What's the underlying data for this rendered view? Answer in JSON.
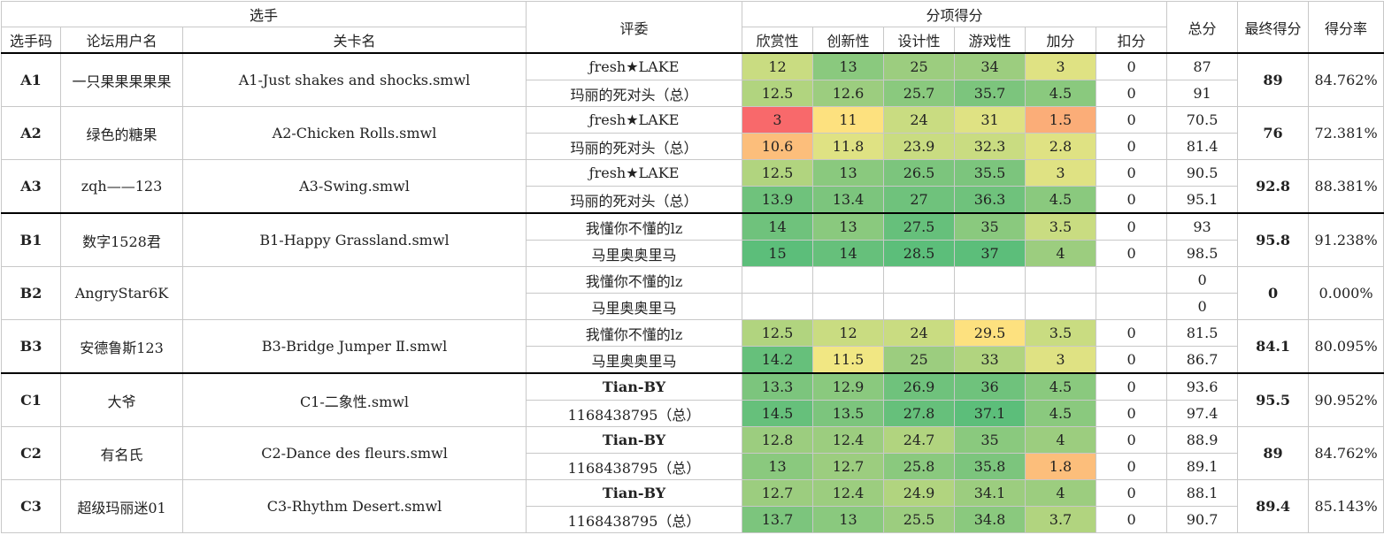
{
  "header": {
    "group_player": "选手",
    "group_judge": "评委",
    "group_scores": "分项得分",
    "col_code": "选手码",
    "col_user": "论坛用户名",
    "col_level": "关卡名",
    "col_appreciation": "欣赏性",
    "col_innovation": "创新性",
    "col_design": "设计性",
    "col_gameplay": "游戏性",
    "col_bonus": "加分",
    "col_penalty": "扣分",
    "col_total": "总分",
    "col_final": "最终得分",
    "col_rate": "得分率"
  },
  "colors": {
    "c_5cbe7a": "#5cbe7a",
    "c_66c07b": "#66c07b",
    "c_6fc27c": "#6fc27c",
    "c_7cc57d": "#7cc57d",
    "c_8ac97e": "#8ac97e",
    "c_9ccd7f": "#9ccd7f",
    "c_b1d47f": "#b1d47f",
    "c_c9dc81": "#c9dc81",
    "c_dfe283": "#dfe283",
    "c_f1e783": "#f1e783",
    "c_fde17f": "#fde17f",
    "c_fcbe7b": "#fcbe7b",
    "c_fbad78": "#fbad78",
    "c_f8696b": "#f8696b"
  },
  "groups": [
    {
      "code": "A1",
      "user": "一只果果果果果",
      "level": "A1-Just shakes and shocks.smwl",
      "final": "89",
      "rate": "84.762%",
      "rows": [
        {
          "judge": "ƒresh★LAKE",
          "s": [
            "12",
            "13",
            "25",
            "34",
            "3",
            "0"
          ],
          "c": [
            "#c9dc81",
            "#8ac97e",
            "#9ccd7f",
            "#9ccd7f",
            "#dfe283",
            ""
          ],
          "total": "87"
        },
        {
          "judge": "玛丽的死对头（总）",
          "s": [
            "12.5",
            "12.6",
            "25.7",
            "35.7",
            "4.5",
            "0"
          ],
          "c": [
            "#b1d47f",
            "#9ccd7f",
            "#8ac97e",
            "#7cc57d",
            "#8ac97e",
            ""
          ],
          "total": "91"
        }
      ]
    },
    {
      "code": "A2",
      "user": "绿色的糖果",
      "level": "A2-Chicken Rolls.smwl",
      "final": "76",
      "rate": "72.381%",
      "rows": [
        {
          "judge": "ƒresh★LAKE",
          "s": [
            "3",
            "11",
            "24",
            "31",
            "1.5",
            "0"
          ],
          "c": [
            "#f8696b",
            "#fde17f",
            "#c9dc81",
            "#dfe283",
            "#fbad78",
            ""
          ],
          "total": "70.5"
        },
        {
          "judge": "玛丽的死对头（总）",
          "s": [
            "10.6",
            "11.8",
            "23.9",
            "32.3",
            "2.8",
            "0"
          ],
          "c": [
            "#fcbe7b",
            "#dfe283",
            "#c9dc81",
            "#c9dc81",
            "#dfe283",
            ""
          ],
          "total": "81.4"
        }
      ]
    },
    {
      "code": "A3",
      "user": "zqh——123",
      "level": "A3-Swing.smwl",
      "final": "92.8",
      "rate": "88.381%",
      "rows": [
        {
          "judge": "ƒresh★LAKE",
          "s": [
            "12.5",
            "13",
            "26.5",
            "35.5",
            "3",
            "0"
          ],
          "c": [
            "#b1d47f",
            "#8ac97e",
            "#7cc57d",
            "#7cc57d",
            "#dfe283",
            ""
          ],
          "total": "90.5"
        },
        {
          "judge": "玛丽的死对头（总）",
          "s": [
            "13.9",
            "13.4",
            "27",
            "36.3",
            "4.5",
            "0"
          ],
          "c": [
            "#6fc27c",
            "#7cc57d",
            "#6fc27c",
            "#6fc27c",
            "#8ac97e",
            ""
          ],
          "total": "95.1"
        }
      ]
    },
    {
      "code": "B1",
      "user": "数字1528君",
      "level": "B1-Happy Grassland.smwl",
      "final": "95.8",
      "rate": "91.238%",
      "rows": [
        {
          "judge": "我懂你不懂的lz",
          "s": [
            "14",
            "13",
            "27.5",
            "35",
            "3.5",
            "0"
          ],
          "c": [
            "#6fc27c",
            "#8ac97e",
            "#66c07b",
            "#8ac97e",
            "#c9dc81",
            ""
          ],
          "total": "93"
        },
        {
          "judge": "马里奥奥里马",
          "s": [
            "15",
            "14",
            "28.5",
            "37",
            "4",
            "0"
          ],
          "c": [
            "#5cbe7a",
            "#66c07b",
            "#5cbe7a",
            "#5cbe7a",
            "#9ccd7f",
            ""
          ],
          "total": "98.5"
        }
      ]
    },
    {
      "code": "B2",
      "user": "AngryStar6K",
      "level": "",
      "final": "0",
      "rate": "0.000%",
      "rows": [
        {
          "judge": "我懂你不懂的lz",
          "s": [
            "",
            "",
            "",
            "",
            "",
            ""
          ],
          "c": [
            "",
            "",
            "",
            "",
            "",
            ""
          ],
          "total": "0"
        },
        {
          "judge": "马里奥奥里马",
          "s": [
            "",
            "",
            "",
            "",
            "",
            ""
          ],
          "c": [
            "",
            "",
            "",
            "",
            "",
            ""
          ],
          "total": "0"
        }
      ]
    },
    {
      "code": "B3",
      "user": "安德鲁斯123",
      "level": "B3-Bridge Jumper Ⅱ.smwl",
      "final": "84.1",
      "rate": "80.095%",
      "rows": [
        {
          "judge": "我懂你不懂的lz",
          "s": [
            "12.5",
            "12",
            "24",
            "29.5",
            "3.5",
            "0"
          ],
          "c": [
            "#b1d47f",
            "#c9dc81",
            "#c9dc81",
            "#fde17f",
            "#c9dc81",
            ""
          ],
          "total": "81.5"
        },
        {
          "judge": "马里奥奥里马",
          "s": [
            "14.2",
            "11.5",
            "25",
            "33",
            "3",
            "0"
          ],
          "c": [
            "#66c07b",
            "#f1e783",
            "#9ccd7f",
            "#b1d47f",
            "#dfe283",
            ""
          ],
          "total": "86.7"
        }
      ]
    },
    {
      "code": "C1",
      "user": "大爷",
      "level": "C1-二象性.smwl",
      "final": "95.5",
      "rate": "90.952%",
      "rows": [
        {
          "judge": "Tian-BY",
          "s": [
            "13.3",
            "12.9",
            "26.9",
            "36",
            "4.5",
            "0"
          ],
          "c": [
            "#7cc57d",
            "#8ac97e",
            "#6fc27c",
            "#6fc27c",
            "#8ac97e",
            ""
          ],
          "total": "93.6"
        },
        {
          "judge": "1168438795（总）",
          "s": [
            "14.5",
            "13.5",
            "27.8",
            "37.1",
            "4.5",
            "0"
          ],
          "c": [
            "#66c07b",
            "#7cc57d",
            "#66c07b",
            "#5cbe7a",
            "#8ac97e",
            ""
          ],
          "total": "97.4"
        }
      ]
    },
    {
      "code": "C2",
      "user": "有名氏",
      "level": "C2-Dance des fleurs.smwl",
      "final": "89",
      "rate": "84.762%",
      "rows": [
        {
          "judge": "Tian-BY",
          "s": [
            "12.8",
            "12.4",
            "24.7",
            "35",
            "4",
            "0"
          ],
          "c": [
            "#9ccd7f",
            "#9ccd7f",
            "#b1d47f",
            "#8ac97e",
            "#9ccd7f",
            ""
          ],
          "total": "88.9"
        },
        {
          "judge": "1168438795（总）",
          "s": [
            "13",
            "12.7",
            "25.8",
            "35.8",
            "1.8",
            "0"
          ],
          "c": [
            "#8ac97e",
            "#9ccd7f",
            "#8ac97e",
            "#7cc57d",
            "#fcbe7b",
            ""
          ],
          "total": "89.1"
        }
      ]
    },
    {
      "code": "C3",
      "user": "超级玛丽迷01",
      "level": "C3-Rhythm Desert.smwl",
      "final": "89.4",
      "rate": "85.143%",
      "rows": [
        {
          "judge": "Tian-BY",
          "s": [
            "12.7",
            "12.4",
            "24.9",
            "34.1",
            "4",
            "0"
          ],
          "c": [
            "#9ccd7f",
            "#9ccd7f",
            "#b1d47f",
            "#9ccd7f",
            "#9ccd7f",
            ""
          ],
          "total": "88.1"
        },
        {
          "judge": "1168438795（总）",
          "s": [
            "13.7",
            "13",
            "25.5",
            "34.8",
            "3.7",
            "0"
          ],
          "c": [
            "#7cc57d",
            "#8ac97e",
            "#9ccd7f",
            "#8ac97e",
            "#b1d47f",
            ""
          ],
          "total": "90.7"
        }
      ]
    }
  ],
  "bold_judges": [
    "Tian-BY"
  ]
}
